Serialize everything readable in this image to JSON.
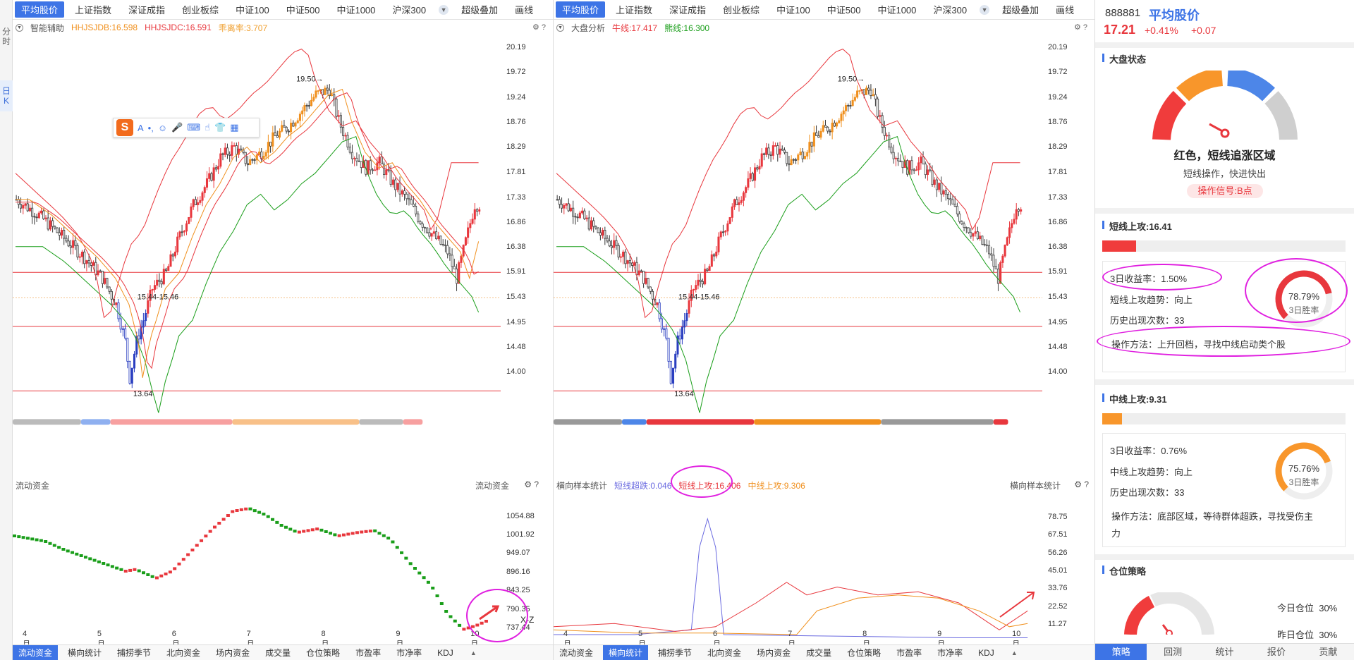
{
  "topbar": {
    "tabs": [
      "平均股价",
      "上证指数",
      "深证成指",
      "创业板综",
      "中证100",
      "中证500",
      "中证1000",
      "沪深300"
    ],
    "right_items": [
      "超级叠加",
      "画线"
    ]
  },
  "side_tabs": [
    "分时",
    "日K"
  ],
  "left_panel": {
    "indicator_label": "智能辅助",
    "ind1": "HHJSJDB:16.598",
    "ind2": "HHJSJDC:16.591",
    "ind3": "乖离率:3.707",
    "sub_label": "流动资金",
    "sub_label_right": "流动资金",
    "yticks": [
      "20.19",
      "19.72",
      "19.24",
      "18.76",
      "18.29",
      "17.81",
      "17.33",
      "16.86",
      "16.38",
      "15.91",
      "15.43",
      "14.95",
      "14.48",
      "14.00"
    ],
    "sub_yticks": [
      "1054.88",
      "1001.92",
      "949.07",
      "896.16",
      "843.25",
      "790.35",
      "737.44"
    ],
    "annot_high": "19.50→",
    "annot_mid": "15.44-15.46",
    "annot_low": "13.64",
    "xz_label": "X-Z",
    "bottom_tabs": [
      "流动资金",
      "横向统计",
      "捕捞季节",
      "北向资金",
      "场内资金",
      "成交量",
      "仓位策略",
      "市盈率",
      "市净率",
      "KDJ"
    ]
  },
  "right_panel": {
    "indicator_label": "大盘分析",
    "ind1": "牛线:17.417",
    "ind2": "熊线:16.300",
    "sub_label": "横向样本统计",
    "sub_ind1": "短线超跌:0.046",
    "sub_ind2": "短线上攻:16.406",
    "sub_ind3": "中线上攻:9.306",
    "sub_label_right": "横向样本统计",
    "yticks": [
      "20.19",
      "19.72",
      "19.24",
      "18.76",
      "18.29",
      "17.81",
      "17.33",
      "16.86",
      "16.38",
      "15.91",
      "15.43",
      "14.95",
      "14.48",
      "14.00"
    ],
    "sub_yticks": [
      "78.75",
      "67.51",
      "56.26",
      "45.01",
      "33.76",
      "22.52",
      "11.27"
    ],
    "annot_high": "19.50→",
    "annot_mid": "15.44-15.46",
    "annot_low": "13.64",
    "bottom_tabs": [
      "流动资金",
      "横向统计",
      "捕捞季节",
      "北向资金",
      "场内资金",
      "成交量",
      "仓位策略",
      "市盈率",
      "市净率",
      "KDJ"
    ]
  },
  "x_months": [
    "4月",
    "5月",
    "6月",
    "7月",
    "8月",
    "9月",
    "10月"
  ],
  "side": {
    "code": "888881",
    "name": "平均股价",
    "price": "17.21",
    "pct": "+0.41%",
    "chg": "+0.07",
    "market_title": "大盘状态",
    "state": "红色，短线追涨区域",
    "state_sub": "短线操作，快进快出",
    "signal": "操作信号:B点",
    "short_title": "短线上攻:16.41",
    "short_progress": 0.14,
    "short_rows": [
      "3日收益率：1.50%",
      "短线上攻趋势：向上",
      "历史出现次数：33",
      "操作方法：上升回档，寻找中线启动类个股"
    ],
    "short_rate": "78.79%",
    "short_rate_value": 0.7879,
    "rate_label": "3日胜率",
    "mid_title": "中线上攻:9.31",
    "mid_progress": 0.08,
    "mid_rows": [
      "3日收益率：0.76%",
      "中线上攻趋势：向上",
      "历史出现次数：33",
      "操作方法：底部区域，等待群体超跌，寻找受伤主",
      "力"
    ],
    "mid_rate": "75.76%",
    "mid_rate_value": 0.7576,
    "pos_title": "仓位策略",
    "pos_today": "今日仓位  30%",
    "pos_yest": "昨日仓位  30%",
    "bottom_tabs": [
      "策略",
      "回测",
      "统计",
      "报价",
      "贡献"
    ]
  },
  "colors": {
    "accent": "#3d74e6",
    "red": "#e8373d",
    "green": "#1a9e1a",
    "orange": "#f0901e"
  }
}
